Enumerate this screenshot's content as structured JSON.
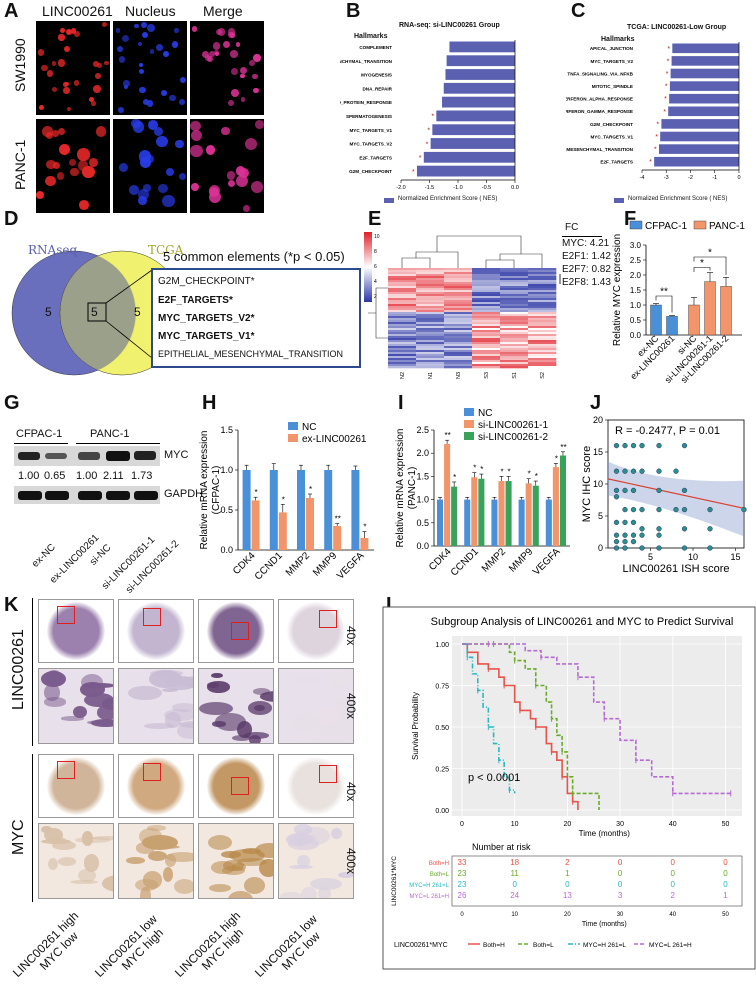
{
  "panels": {
    "A": "A",
    "B": "B",
    "C": "C",
    "D": "D",
    "E": "E",
    "F": "F",
    "G": "G",
    "H": "H",
    "I": "I",
    "J": "J",
    "K": "K",
    "L": "L"
  },
  "panelA": {
    "col_headers": [
      "LINC00261",
      "Nucleus",
      "Merge"
    ],
    "row_labels": [
      "SW1990",
      "PANC-1"
    ]
  },
  "panelB": {
    "title": "RNA-seq:  si-LINC00261 Group",
    "hallmarks_label": "Hallmarks",
    "legend": "Normalized Enrichment Score ( NES)",
    "bar_color": "#5b60b0"
  },
  "panelC": {
    "title": "TCGA:  LINC00261-Low Group",
    "hallmarks_label": "Hallmarks",
    "legend": "Normalized Enrichment Score ( NES)",
    "bar_color": "#5b60b0"
  },
  "panelD": {
    "circle_left": "RNAseq",
    "circle_right": "TCGA",
    "left_count": "5",
    "mid_count": "5",
    "right_count": "5",
    "heading": "5 common elements  (*p < 0.05)",
    "items": [
      "G2M_CHECKPOINT*",
      "E2F_TARGETS*",
      "MYC_TARGETS_V2*",
      "MYC_TARGETS_V1*",
      "EPITHELIAL_MESENCHYMAL_TRANSITION"
    ]
  },
  "panelE": {
    "fc_title": "FC",
    "fc_lines": [
      "MYC: 4.21",
      "E2F1: 1.42",
      "E2F7: 0.82",
      "E2F8: 1.43"
    ],
    "scale_ticks": [
      "10",
      "8",
      "6",
      "4",
      "2"
    ],
    "samples": [
      "N2",
      "N1",
      "N3",
      "S3",
      "S1",
      "S2"
    ]
  },
  "panelG": {
    "group_left": "CFPAC-1",
    "group_right": "PANC-1",
    "band_top": "MYC",
    "band_bottom": "GAPDH",
    "values": [
      "1.00",
      "0.65",
      "1.00",
      "2.11",
      "1.73"
    ],
    "lanes": [
      "ex-NC",
      "ex-LINC00261",
      "si-NC",
      "si-LINC00261-1",
      "si-LINC00261-2"
    ]
  },
  "panelK": {
    "row_label_top": "LINC00261",
    "row_label_bottom": "MYC",
    "mag_low": "40x",
    "mag_high": "400x",
    "col_labels": [
      [
        "LINC00261 high",
        "MYC  low"
      ],
      [
        "LINC00261 low",
        "MYC high"
      ],
      [
        "LINC00261 high",
        "MYC high"
      ],
      [
        "LINC00261 low",
        "MYC low"
      ]
    ]
  },
  "chart_data": [
    {
      "id": "B",
      "type": "bar",
      "orientation": "horizontal",
      "title": "RNA-seq:  si-LINC00261 Group",
      "categories": [
        "COMPLEMENT",
        "EPITHELIAL_MESENCHYMAL_TRANSITION",
        "MYOGENESIS",
        "DNA_REPAIR",
        "UNFOLDED_PROTEIN_RESPONSE",
        "SPERMATOGENESIS",
        "MYC_TARGETS_V1",
        "MYC_TARGETS_V2",
        "E2F_TARGETS",
        "G2M_CHECKPOINT"
      ],
      "values": [
        -1.15,
        -1.2,
        -1.22,
        -1.25,
        -1.28,
        -1.38,
        -1.45,
        -1.48,
        -1.6,
        -1.72
      ],
      "significant": [
        false,
        false,
        false,
        false,
        false,
        true,
        true,
        true,
        true,
        true
      ],
      "xlabel": "Normalized Enrichment Score ( NES)",
      "xlim": [
        -2.0,
        0.0
      ],
      "xticks": [
        "-2.0",
        "-1.5",
        "-1.0",
        "-0.5",
        "0.0"
      ]
    },
    {
      "id": "C",
      "type": "bar",
      "orientation": "horizontal",
      "title": "TCGA:  LINC00261-Low Group",
      "categories": [
        "APICAL_JUNCTION",
        "MYC_TARGETS_V2",
        "TNFA_SIGNALING_VIA_NFKB",
        "MITOTIC_SPINDLE",
        "INTERFERON_ALPHA_RESPONSE",
        "INTERFERON_GAMMA_RESPONSE",
        "G2M_CHECKPOINT",
        "MYC_TARGETS_V1",
        "EPITHELIAL_MESENCHYMAL_TRANSITION",
        "E2F_TARGETS"
      ],
      "values": [
        -2.75,
        -2.78,
        -2.82,
        -2.85,
        -2.88,
        -2.92,
        -3.2,
        -3.25,
        -3.3,
        -3.5
      ],
      "significant": [
        true,
        true,
        true,
        true,
        true,
        true,
        true,
        true,
        true,
        true
      ],
      "xlabel": "Normalized Enrichment Score ( NES)",
      "xlim": [
        -4,
        0
      ],
      "xticks": [
        "-4",
        "-3",
        "-2",
        "-1",
        "0"
      ]
    },
    {
      "id": "F",
      "type": "bar",
      "ylabel": "Relative MYC expression",
      "legend": [
        "CFPAC-1",
        "PANC-1"
      ],
      "colors": [
        "#4a90d9",
        "#f2956a"
      ],
      "categories": [
        "ex-NC",
        "ex-LINC00261",
        "si-NC",
        "si-LINC00261-1",
        "si-LINC00261-2"
      ],
      "series_index": [
        0,
        0,
        1,
        1,
        1
      ],
      "values": [
        1.0,
        0.62,
        1.0,
        1.78,
        1.62
      ],
      "errors": [
        0.05,
        0.03,
        0.25,
        0.3,
        0.3
      ],
      "significance": [
        "**",
        "*",
        "*"
      ],
      "ylim": [
        0,
        3.0
      ],
      "yticks": [
        "0.0",
        "0.5",
        "1.0",
        "1.5",
        "2.0",
        "2.5",
        "3.0"
      ]
    },
    {
      "id": "H",
      "type": "bar",
      "ylabel": "Relative mRNA expression\n(CFPAC-1)",
      "categories": [
        "CDK4",
        "CCND1",
        "MMP2",
        "MMP9",
        "VEGFA"
      ],
      "series": [
        {
          "name": "NC",
          "color": "#4a90d9",
          "values": [
            1.0,
            1.0,
            1.0,
            1.0,
            1.0
          ],
          "errors": [
            0.06,
            0.08,
            0.06,
            0.06,
            0.05
          ]
        },
        {
          "name": "ex-LINC00261",
          "color": "#f2956a",
          "values": [
            0.62,
            0.47,
            0.65,
            0.3,
            0.15
          ],
          "errors": [
            0.04,
            0.1,
            0.05,
            0.03,
            0.08
          ]
        }
      ],
      "significance": [
        "*",
        "*",
        "*",
        "**",
        "*"
      ],
      "ylim": [
        0,
        1.5
      ],
      "yticks": [
        "0.0",
        "0.5",
        "1.0",
        "1.5"
      ]
    },
    {
      "id": "I",
      "type": "bar",
      "ylabel": "Relative mRNA expression\n(PANC-1)",
      "categories": [
        "CDK4",
        "CCND1",
        "MMP2",
        "MMP9",
        "VEGFA"
      ],
      "series": [
        {
          "name": "NC",
          "color": "#4a90d9",
          "values": [
            1.0,
            1.0,
            1.0,
            1.0,
            1.0
          ],
          "errors": [
            0.05,
            0.05,
            0.05,
            0.05,
            0.05
          ]
        },
        {
          "name": "si-LINC00261-1",
          "color": "#f2956a",
          "values": [
            2.2,
            1.48,
            1.4,
            1.35,
            1.7
          ],
          "errors": [
            0.08,
            0.1,
            0.1,
            0.1,
            0.08
          ]
        },
        {
          "name": "si-LINC00261-2",
          "color": "#3aa35b",
          "values": [
            1.28,
            1.45,
            1.4,
            1.3,
            1.95
          ],
          "errors": [
            0.1,
            0.1,
            0.1,
            0.1,
            0.08
          ]
        }
      ],
      "significance": [
        [
          "**",
          "*"
        ],
        [
          "*",
          "*"
        ],
        [
          "*",
          "*"
        ],
        [
          "*",
          "*"
        ],
        [
          "*",
          "**"
        ]
      ],
      "ylim": [
        0,
        2.5
      ],
      "yticks": [
        "0.0",
        "0.5",
        "1.0",
        "1.5",
        "2.0",
        "2.5"
      ]
    },
    {
      "id": "J",
      "type": "scatter",
      "annotation": "R = -0.2477, P = 0.01",
      "xlabel": "LINC00261 ISH score",
      "ylabel": "MYC IHC score",
      "xlim": [
        0,
        16
      ],
      "ylim": [
        0,
        20
      ],
      "xticks": [
        "5",
        "10",
        "15"
      ],
      "yticks": [
        "0",
        "5",
        "10",
        "15",
        "20"
      ],
      "points": [
        [
          1,
          16
        ],
        [
          2,
          16
        ],
        [
          3,
          16
        ],
        [
          4,
          16
        ],
        [
          6,
          16
        ],
        [
          9,
          16
        ],
        [
          1,
          12
        ],
        [
          2,
          12
        ],
        [
          3,
          12
        ],
        [
          4,
          12
        ],
        [
          6,
          12
        ],
        [
          8,
          12
        ],
        [
          1,
          9
        ],
        [
          2,
          9
        ],
        [
          3,
          9
        ],
        [
          6,
          9
        ],
        [
          9,
          9
        ],
        [
          1,
          8
        ],
        [
          2,
          6
        ],
        [
          3,
          6
        ],
        [
          4,
          6
        ],
        [
          6,
          6
        ],
        [
          8,
          6
        ],
        [
          9,
          6
        ],
        [
          12,
          6
        ],
        [
          16,
          6
        ],
        [
          1,
          4
        ],
        [
          2,
          4
        ],
        [
          3,
          4
        ],
        [
          4,
          3
        ],
        [
          6,
          3
        ],
        [
          9,
          3
        ],
        [
          12,
          3
        ],
        [
          1,
          2
        ],
        [
          2,
          2
        ],
        [
          3,
          2
        ],
        [
          4,
          2
        ],
        [
          6,
          2
        ],
        [
          1,
          1
        ],
        [
          2,
          1
        ],
        [
          3,
          1
        ],
        [
          4,
          0
        ],
        [
          6,
          0
        ],
        [
          9,
          0
        ],
        [
          12,
          0
        ],
        [
          1,
          0
        ],
        [
          2,
          0
        ]
      ],
      "fit": {
        "x": [
          0,
          16
        ],
        "y": [
          10.8,
          6.2
        ]
      }
    },
    {
      "id": "L",
      "type": "line",
      "subtype": "kaplan-meier",
      "title": "Subgroup Analysis of LINC00261 and MYC to Predict Survival",
      "xlabel": "Time (months)",
      "ylabel": "Survival Probability",
      "xlim": [
        0,
        52
      ],
      "ylim": [
        0,
        1.0
      ],
      "xticks": [
        "0",
        "10",
        "20",
        "30",
        "40",
        "50"
      ],
      "yticks": [
        "0.00",
        "0.25",
        "0.50",
        "0.75",
        "1.00"
      ],
      "pvalue": "p < 0.0001",
      "legend_title": "LINC00261*MYC",
      "series": [
        {
          "name": "Both=H",
          "color": "#e8534a",
          "style": "solid",
          "x": [
            0,
            1,
            3,
            5,
            7,
            8,
            10,
            11,
            13,
            14,
            16,
            17,
            18,
            19,
            20,
            21,
            22
          ],
          "y": [
            1.0,
            0.95,
            0.88,
            0.85,
            0.8,
            0.75,
            0.65,
            0.6,
            0.55,
            0.5,
            0.4,
            0.35,
            0.3,
            0.2,
            0.1,
            0.05,
            0.0
          ]
        },
        {
          "name": "Both=L",
          "color": "#6aaa2a",
          "style": "dashed",
          "x": [
            0,
            6,
            9,
            10,
            12,
            14,
            16,
            17,
            18,
            19,
            20,
            21,
            26
          ],
          "y": [
            1.0,
            1.0,
            0.95,
            0.9,
            0.85,
            0.75,
            0.65,
            0.55,
            0.45,
            0.35,
            0.2,
            0.1,
            0.0
          ]
        },
        {
          "name": "MYC=H 261=L",
          "color": "#29b8c2",
          "style": "dash-dot",
          "x": [
            0,
            1,
            2,
            3,
            4,
            5,
            6,
            7,
            8,
            9,
            10
          ],
          "y": [
            1.0,
            0.92,
            0.82,
            0.72,
            0.62,
            0.5,
            0.4,
            0.3,
            0.2,
            0.12,
            0.1
          ]
        },
        {
          "name": "MYC=L 261=H",
          "color": "#b66ad6",
          "style": "dashed",
          "x": [
            0,
            5,
            12,
            15,
            18,
            22,
            25,
            27,
            30,
            33,
            36,
            40,
            45,
            51
          ],
          "y": [
            1.0,
            1.0,
            0.96,
            0.92,
            0.88,
            0.8,
            0.65,
            0.55,
            0.42,
            0.3,
            0.2,
            0.1,
            0.1,
            0.1
          ]
        }
      ],
      "risk_table": {
        "title": "Number at risk",
        "ylabel": "LINC00261*MYC",
        "times": [
          "0",
          "10",
          "20",
          "30",
          "40",
          "50"
        ],
        "rows": [
          {
            "label": "Both=H",
            "color": "#e8534a",
            "counts": [
              "33",
              "18",
              "2",
              "0",
              "0",
              "0"
            ]
          },
          {
            "label": "Both=L",
            "color": "#6aaa2a",
            "counts": [
              "23",
              "11",
              "1",
              "0",
              "0",
              "0"
            ]
          },
          {
            "label": "MYC=H 261=L",
            "color": "#29b8c2",
            "counts": [
              "23",
              "0",
              "0",
              "0",
              "0",
              "0"
            ]
          },
          {
            "label": "MYC=L 261=H",
            "color": "#b66ad6",
            "counts": [
              "26",
              "24",
              "13",
              "3",
              "2",
              "1"
            ]
          }
        ],
        "xlabel": "Time (months)"
      }
    }
  ]
}
